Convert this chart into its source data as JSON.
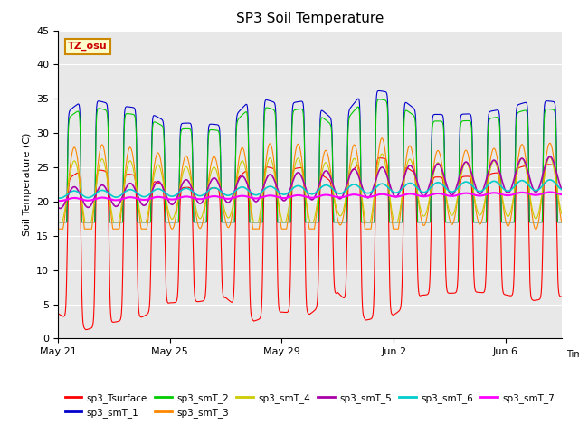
{
  "title": "SP3 Soil Temperature",
  "ylabel": "Soil Temperature (C)",
  "xlabel": "Time",
  "ylim": [
    0,
    45
  ],
  "background_color": "#ffffff",
  "plot_bg_color": "#e8e8e8",
  "series_colors": {
    "sp3_Tsurface": "#ff0000",
    "sp3_smT_1": "#0000cc",
    "sp3_smT_2": "#00cc00",
    "sp3_smT_3": "#ff8800",
    "sp3_smT_4": "#cccc00",
    "sp3_smT_5": "#aa00aa",
    "sp3_smT_6": "#00cccc",
    "sp3_smT_7": "#ff00ff"
  },
  "tz_label": "TZ_osu",
  "x_tick_labels": [
    "May 21",
    "May 25",
    "May 29",
    "Jun 2",
    "Jun 6"
  ],
  "x_tick_positions": [
    0,
    4,
    8,
    12,
    16
  ],
  "total_days": 18,
  "pts_per_day": 144
}
